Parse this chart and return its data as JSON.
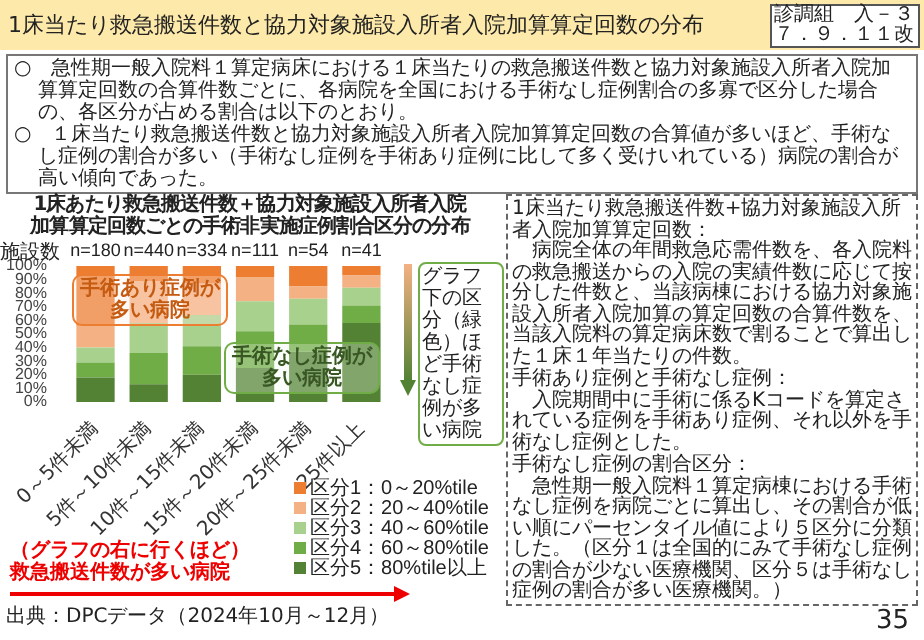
{
  "chart_data": {
    "type": "bar",
    "stacked": true,
    "title": "1床当たり救急搬送件数と協力対象施設入所者入院加算算定回数の分布",
    "subtitle": "1床あたり救急搬送件数＋協力対象施設入所者入院加算算定回数ごとの手術非実施症例割合区分の分布",
    "categories": [
      "0～5件未満",
      "5件～10件未満",
      "10件～15件未満",
      "15件～20件未満",
      "20件～25件未満",
      "25件以上"
    ],
    "series": [
      {
        "name": "区分5：80%tile以上",
        "color": "#548235",
        "values": [
          18,
          13,
          20,
          25,
          37,
          58
        ]
      },
      {
        "name": "区分4：60～80%tile",
        "color": "#70ad47",
        "values": [
          11,
          23,
          21,
          27,
          20,
          13
        ]
      },
      {
        "name": "区分3：40～60%tile",
        "color": "#a9d18e",
        "values": [
          11,
          22,
          23,
          22,
          19,
          13
        ]
      },
      {
        "name": "区分2：20～40%tile",
        "color": "#f4b183",
        "values": [
          16,
          31,
          23,
          18,
          9,
          9
        ]
      },
      {
        "name": "区分1：0～20%tile",
        "color": "#ed7d31",
        "values": [
          44,
          11,
          13,
          8,
          15,
          7
        ]
      }
    ],
    "ylim": [
      0,
      100
    ],
    "yticks": [
      {
        "value": 0,
        "label": "0%"
      },
      {
        "value": 10,
        "label": "10%"
      },
      {
        "value": 20,
        "label": "20%"
      },
      {
        "value": 30,
        "label": "30%"
      },
      {
        "value": 40,
        "label": "40%"
      },
      {
        "value": 50,
        "label": "50%"
      },
      {
        "value": 60,
        "label": "60%"
      },
      {
        "value": 70,
        "label": "70%"
      },
      {
        "value": 80,
        "label": "80%"
      },
      {
        "value": 90,
        "label": "90%"
      },
      {
        "value": 100,
        "label": "100%"
      }
    ],
    "legend": "bottom right",
    "annotations": [
      "診調組　入－３７．９．１１改",
      "○　急性期一般入院料１算定病床における１床当たりの救急搬送件数と協力対象施設入所者入院加算算定回数の合算件数ごとに、各病院を全国における手術なし症例割合の多寡で区分した場合の、各区分が占める割合は以下のとおり。",
      "○　１床当たり救急搬送件数と協力対象施設入所者入院加算算定回数の合算値が多いほど、手術なし症例の割合が多い（手術なし症例を手術あり症例に比して多く受けいれている）病院の割合が高い傾向であった。",
      "施設数",
      "手術あり症例が多い病院",
      "手術なし症例が多い病院",
      "グラフ下の区分（緑色）ほど手術なし症例が多い病院",
      "（グラフの右に行くほど）救急搬送件数が多い病院",
      "1床当たり救急搬送件数+協力対象施設入所者入院加算算定回数：",
      "病院全体の年間救急応需件数を、各入院料の救急搬送からの入院の実績件数に応じて按分した件数と、当該病棟における協力対象施設入所者入院加算の算定回数の合算件数を、当該入院料の算定病床数で割ることで算出した１床１年当たりの件数。",
      "手術あり症例と手術なし症例：",
      "入院期間中に手術に係るKコードを算定されている症例を手術あり症例、それ以外を手術なし症例とした。",
      "手術なし症例の割合区分：",
      "急性期一般入院料１算定病棟における手術なし症例を病院ごとに算出し、その割合が低い順にパーセンタイル値により５区分に分類した。（区分１は全国的にみて手術なし症例の割合が少ない医療機関、区分５は手術なし症例の割合が多い医療機関。）",
      "出典：DPCデータ（2024年10月～12月）",
      "35",
      {
        "text": "n=180",
        "x": "0～5件未満",
        "y": 100
      },
      {
        "text": "n=440",
        "x": "5件～10件未満",
        "y": 100
      },
      {
        "text": "n=334",
        "x": "10件～15件未満",
        "y": 100
      },
      {
        "text": "n=111",
        "x": "15件～20件未満",
        "y": 100
      },
      {
        "text": "n=54",
        "x": "20件～25件未満",
        "y": 100
      },
      {
        "text": "n=41",
        "x": "25件以上",
        "y": 100
      }
    ]
  }
}
